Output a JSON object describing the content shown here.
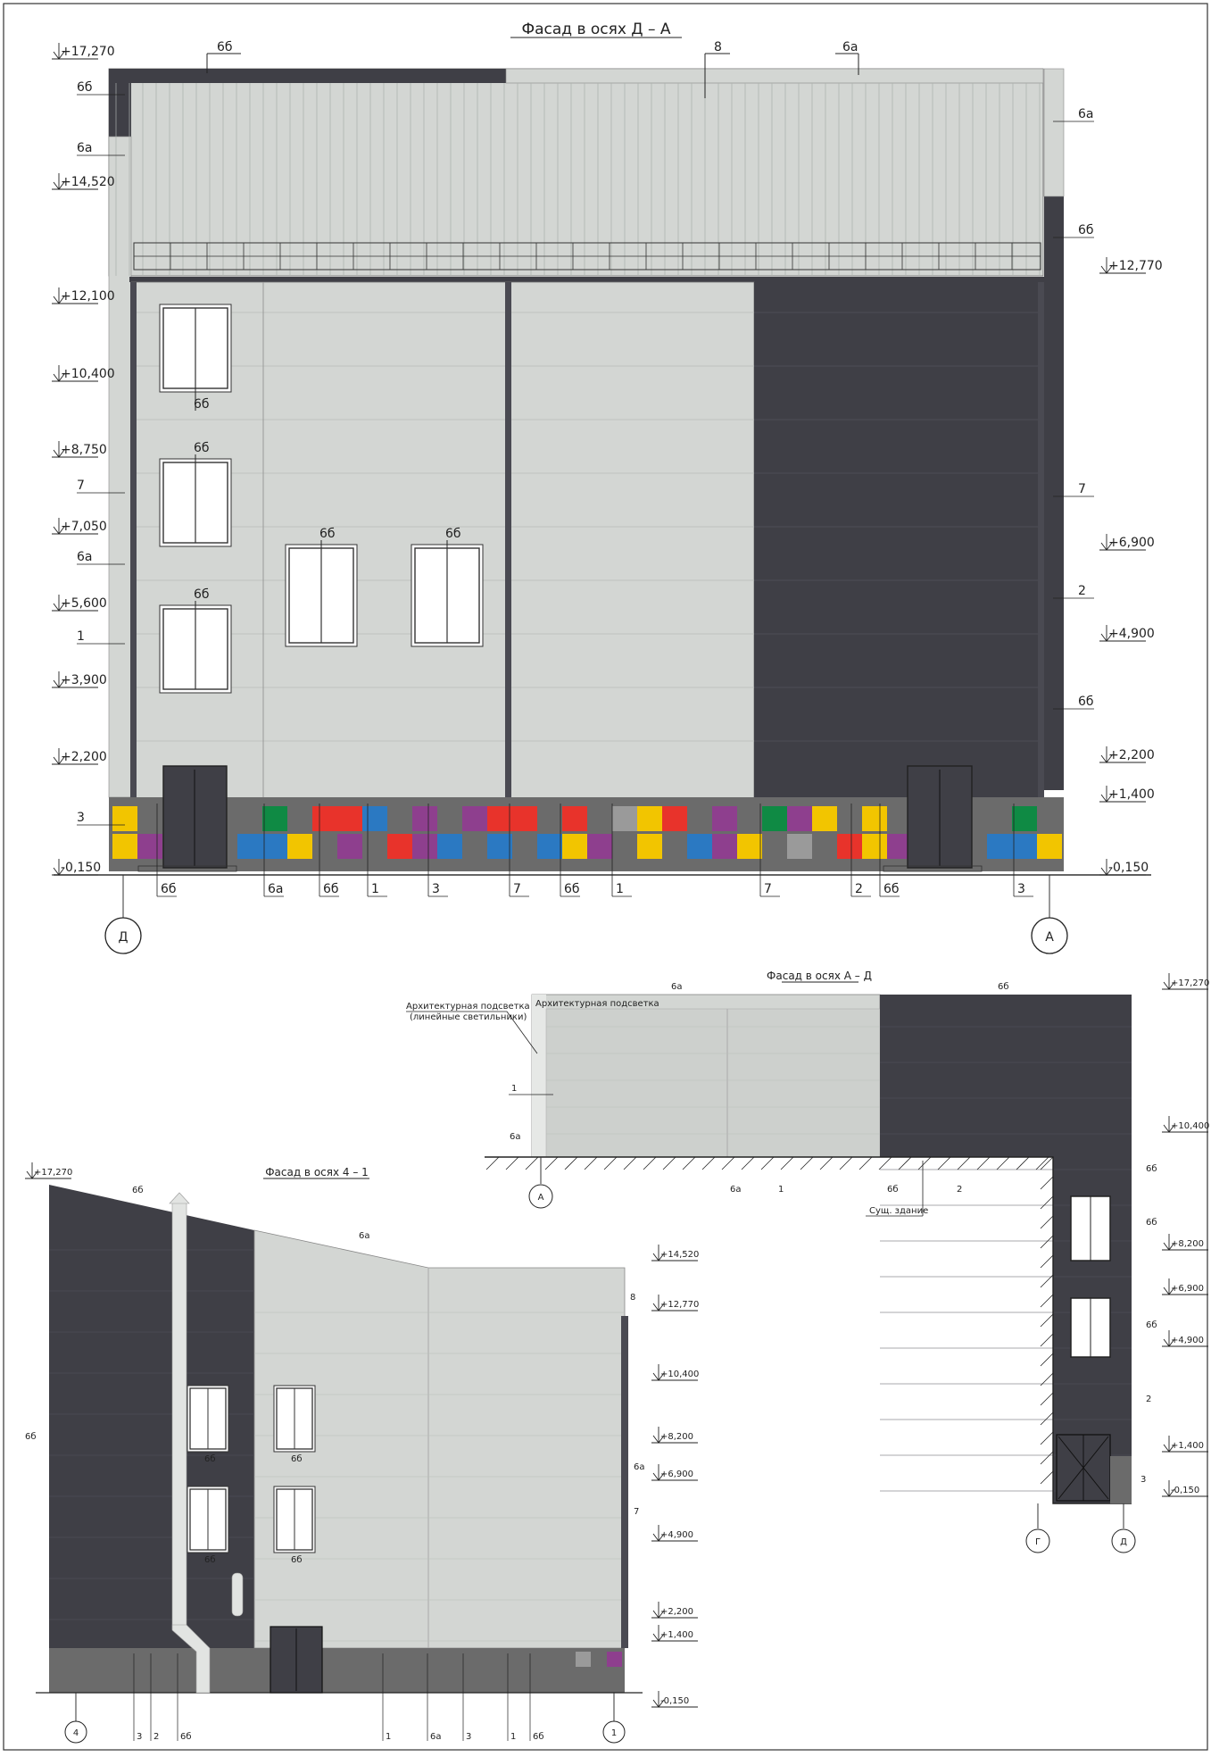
{
  "colors": {
    "light_panel": "#d3d6d3",
    "dark_panel": "#3f3f46",
    "plinth": "#6b6b6b",
    "yellow": "#f2c500",
    "red": "#e8332b",
    "purple": "#8e3f8e",
    "blue": "#2b79c2",
    "green": "#0f8a44",
    "grey_tile": "#9a9a9a"
  },
  "facade_main": {
    "title": "Фасад в осях Д – А",
    "levels_left": [
      "+17,270",
      "+14,520",
      "+12,100",
      "+10,400",
      "+8,750",
      "+7,050",
      "+5,600",
      "+3,900",
      "+2,200",
      "-0,150"
    ],
    "levels_right": [
      "+12,770",
      "+6,900",
      "+4,900",
      "+2,200",
      "+1,400",
      "-0,150"
    ],
    "top_labels": [
      "6б",
      "8",
      "6а"
    ],
    "left_labels": [
      "6б",
      "6а",
      "7",
      "6а",
      "1",
      "3"
    ],
    "right_labels": [
      "6а",
      "6б",
      "7",
      "2",
      "6б"
    ],
    "window_labels": [
      "6б",
      "6б",
      "6б",
      "6б",
      "6б"
    ],
    "bottom_labels": [
      "6б",
      "6а",
      "6б",
      "1",
      "3",
      "7",
      "6б",
      "1",
      "7",
      "2",
      "6б",
      "3"
    ],
    "axes": [
      "Д",
      "А"
    ]
  },
  "facade_ad": {
    "title": "Фасад в осях А – Д",
    "note_line1": "Архитектурная подсветка",
    "note_line2": "(линейные светильники)",
    "existing": "Сущ. здание",
    "labels": [
      "6а",
      "6б",
      "1",
      "6а",
      "6а",
      "1",
      "6б",
      "2"
    ],
    "right_labels": [
      "6б",
      "6б",
      "6б",
      "2",
      "3"
    ],
    "levels": [
      "+17,270",
      "+10,400",
      "+8,200",
      "+6,900",
      "+4,900",
      "+1,400",
      "-0,150"
    ],
    "axes": [
      "А",
      "Г",
      "Д"
    ]
  },
  "facade_41": {
    "title": "Фасад в осях 4 – 1",
    "levels_left": [
      "+17,270"
    ],
    "levels_right": [
      "+14,520",
      "+12,770",
      "+10,400",
      "+8,200",
      "+6,900",
      "+4,900",
      "+2,200",
      "+1,400",
      "-0,150"
    ],
    "labels_top": [
      "6б",
      "6а",
      "8"
    ],
    "labels_side": [
      "6б",
      "6а",
      "7"
    ],
    "window_labels": [
      "6б",
      "6б",
      "6б",
      "6б"
    ],
    "bottom_labels": [
      "3",
      "2",
      "6б",
      "1",
      "6а",
      "3",
      "1",
      "6б"
    ],
    "axes": [
      "4",
      "1"
    ]
  }
}
